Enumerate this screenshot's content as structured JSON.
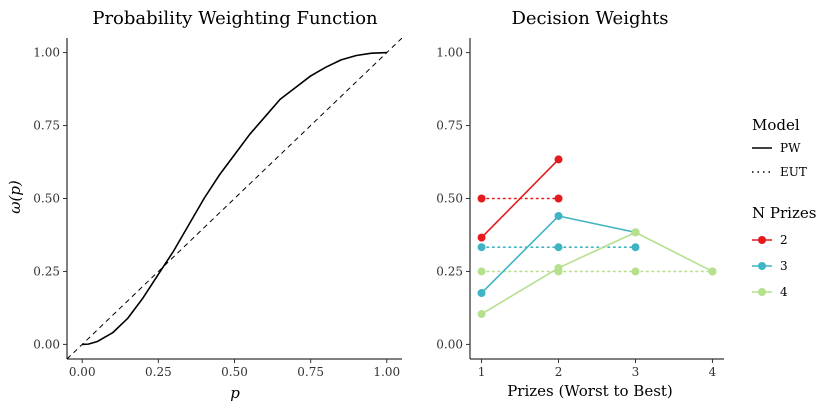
{
  "chart_data": [
    {
      "type": "line",
      "title": "Probability Weighting Function",
      "xlabel": "p",
      "ylabel": "ω(p)",
      "xlim": [
        -0.05,
        1.05
      ],
      "ylim": [
        -0.05,
        1.05
      ],
      "x_ticks": [
        0,
        0.25,
        0.5,
        0.75,
        1
      ],
      "x_tick_labels": [
        "0.00",
        "0.25",
        "0.50",
        "0.75",
        "1.00"
      ],
      "y_ticks": [
        0,
        0.25,
        0.5,
        0.75,
        1
      ],
      "y_tick_labels": [
        "0.00",
        "0.25",
        "0.50",
        "0.75",
        "1.00"
      ],
      "grid": false,
      "series": [
        {
          "style": "solid",
          "x": [
            0,
            0.02,
            0.05,
            0.1,
            0.15,
            0.2,
            0.25,
            0.3,
            0.35,
            0.4,
            0.45,
            0.5,
            0.55,
            0.6,
            0.65,
            0.7,
            0.75,
            0.8,
            0.85,
            0.9,
            0.95,
            1
          ],
          "y": [
            0,
            0.001,
            0.01,
            0.04,
            0.09,
            0.16,
            0.24,
            0.32,
            0.41,
            0.5,
            0.58,
            0.65,
            0.72,
            0.78,
            0.84,
            0.88,
            0.92,
            0.95,
            0.975,
            0.99,
            0.998,
            1
          ]
        },
        {
          "style": "dashed",
          "x": [
            -0.05,
            1.05
          ],
          "y": [
            -0.05,
            1.05
          ]
        }
      ]
    },
    {
      "type": "line",
      "title": "Decision Weights",
      "xlabel": "Prizes (Worst to Best)",
      "ylabel": "",
      "xlim": [
        0.85,
        4.15
      ],
      "ylim": [
        -0.05,
        1.05
      ],
      "x_ticks": [
        1,
        2,
        3,
        4
      ],
      "x_tick_labels": [
        "1",
        "2",
        "3",
        "4"
      ],
      "y_ticks": [
        0,
        0.25,
        0.5,
        0.75,
        1
      ],
      "y_tick_labels": [
        "0.00",
        "0.25",
        "0.50",
        "0.75",
        "1.00"
      ],
      "grid": false,
      "legend_placement": "right",
      "series": [
        {
          "group": "2",
          "model": "PW",
          "color": "#e41a1c",
          "x": [
            1,
            2
          ],
          "y": [
            0.366,
            0.634
          ]
        },
        {
          "group": "2",
          "model": "EUT",
          "color": "#e41a1c",
          "x": [
            1,
            2
          ],
          "y": [
            0.5,
            0.5
          ]
        },
        {
          "group": "3",
          "model": "PW",
          "color": "#3fb4c4",
          "x": [
            1,
            2,
            3
          ],
          "y": [
            0.176,
            0.44,
            0.384
          ]
        },
        {
          "group": "3",
          "model": "EUT",
          "color": "#3fb4c4",
          "x": [
            1,
            2,
            3
          ],
          "y": [
            0.333,
            0.333,
            0.333
          ]
        },
        {
          "group": "4",
          "model": "PW",
          "color": "#b5e08c",
          "x": [
            1,
            2,
            3,
            4
          ],
          "y": [
            0.104,
            0.262,
            0.384,
            0.25
          ]
        },
        {
          "group": "4",
          "model": "EUT",
          "color": "#b5e08c",
          "x": [
            1,
            2,
            3,
            4
          ],
          "y": [
            0.25,
            0.25,
            0.25,
            0.25
          ]
        }
      ]
    }
  ],
  "legend": {
    "model_title": "Model",
    "model_items": [
      {
        "label": "PW",
        "style": "solid"
      },
      {
        "label": "EUT",
        "style": "dotted"
      }
    ],
    "prizes_title": "N Prizes",
    "prizes_items": [
      {
        "label": "2",
        "color": "#e41a1c"
      },
      {
        "label": "3",
        "color": "#3fb4c4"
      },
      {
        "label": "4",
        "color": "#b5e08c"
      }
    ]
  }
}
